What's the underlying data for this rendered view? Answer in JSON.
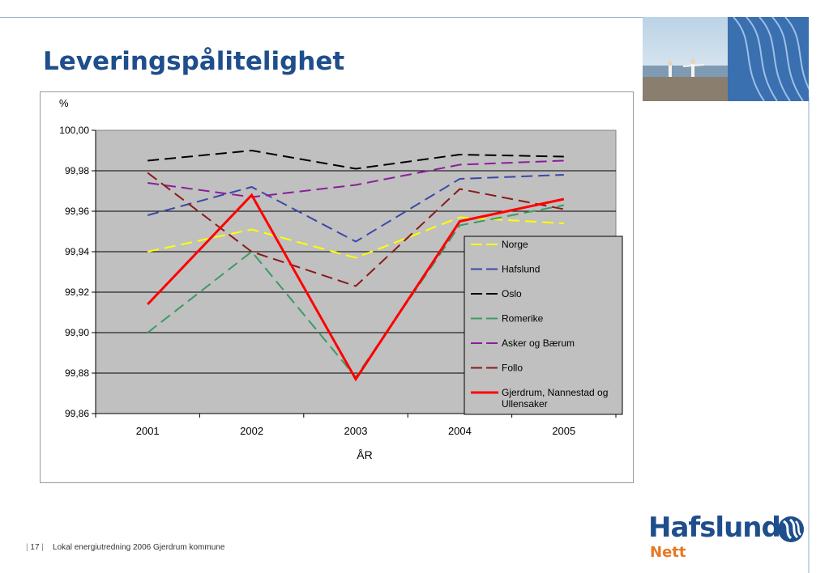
{
  "slide": {
    "title": "Leveringspålitelighet",
    "footer": {
      "page": "17",
      "text": "Lokal energiutredning 2006 Gjerdrum kommune"
    },
    "logo": {
      "name": "Hafslund",
      "sub": "Nett"
    },
    "colors": {
      "title": "#1f4e8c",
      "logo_accent": "#e87722"
    }
  },
  "chart_data": {
    "type": "line",
    "ylabel": "%",
    "xlabel": "ÅR",
    "categories": [
      "2001",
      "2002",
      "2003",
      "2004",
      "2005"
    ],
    "ylim": [
      99.86,
      100.0
    ],
    "yticks": [
      "100,00",
      "99,98",
      "99,96",
      "99,94",
      "99,92",
      "99,90",
      "99,88",
      "99,86"
    ],
    "grid": true,
    "plot_background": "#c0c0c0",
    "legend_position": "right",
    "series": [
      {
        "name": "Norge",
        "values": [
          99.94,
          99.951,
          99.937,
          99.957,
          99.954
        ],
        "color": "#ffff00",
        "dashed": true,
        "width": 2
      },
      {
        "name": "Hafslund",
        "values": [
          99.958,
          99.972,
          99.945,
          99.976,
          99.978
        ],
        "color": "#3b48a8",
        "dashed": true,
        "width": 2
      },
      {
        "name": "Oslo",
        "values": [
          99.985,
          99.99,
          99.981,
          99.988,
          99.987
        ],
        "color": "#000000",
        "dashed": true,
        "width": 2
      },
      {
        "name": "Romerike",
        "values": [
          99.9,
          99.94,
          99.878,
          99.953,
          99.963
        ],
        "color": "#3c9a64",
        "dashed": true,
        "width": 2
      },
      {
        "name": "Asker og Bærum",
        "values": [
          99.974,
          99.967,
          99.973,
          99.983,
          99.985
        ],
        "color": "#8a1f9a",
        "dashed": true,
        "width": 2
      },
      {
        "name": "Follo",
        "values": [
          99.979,
          99.94,
          99.923,
          99.971,
          99.961
        ],
        "color": "#8b1a1a",
        "dashed": true,
        "width": 2
      },
      {
        "name": "Gjerdrum, Nannestad og Ullensaker",
        "values": [
          99.914,
          99.968,
          99.877,
          99.955,
          99.966
        ],
        "color": "#ff0000",
        "dashed": false,
        "width": 3
      }
    ]
  }
}
